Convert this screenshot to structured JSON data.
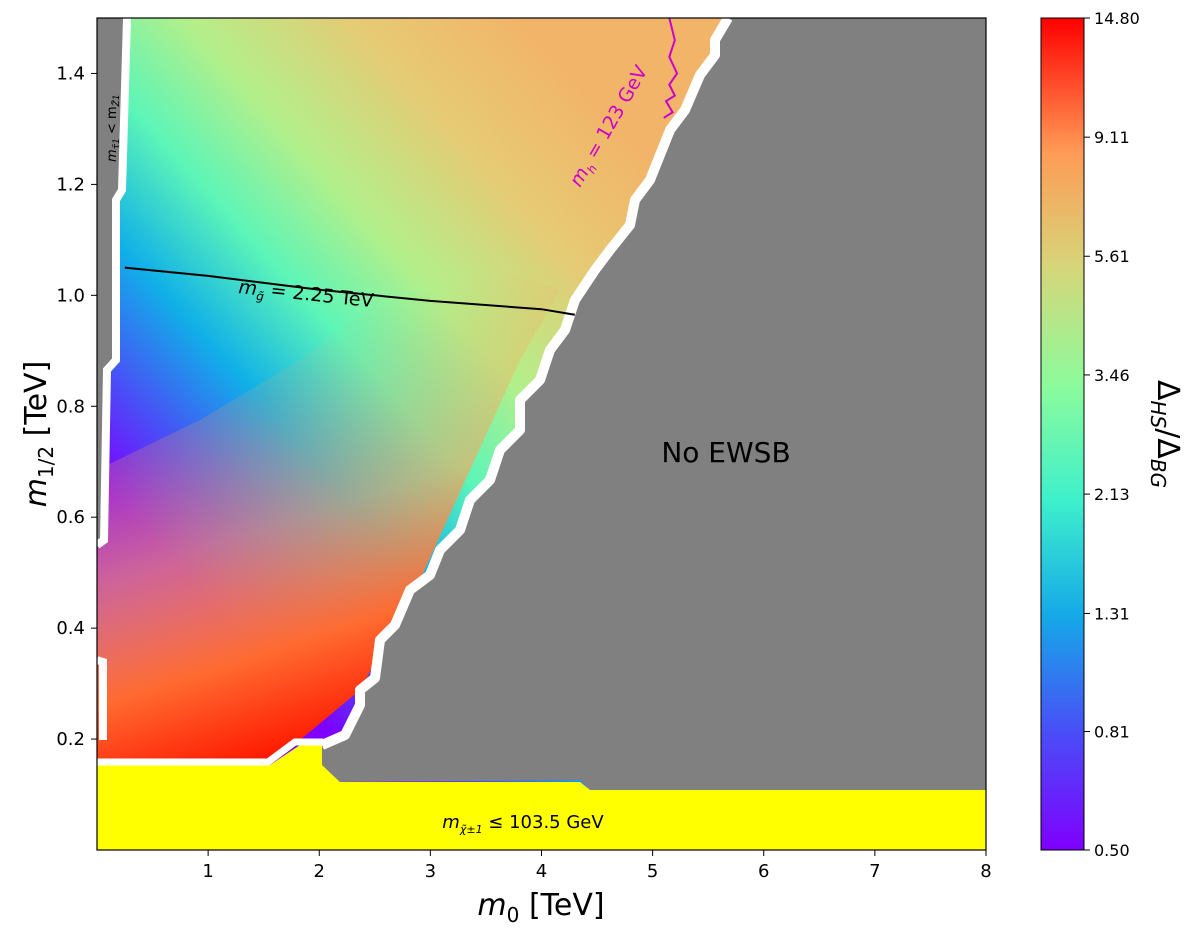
{
  "chart_data": {
    "type": "heatmap",
    "xlabel_var": "m",
    "xlabel_sub": "0",
    "xlabel_unit": "[TeV]",
    "ylabel_var": "m",
    "ylabel_sub": "1/2",
    "ylabel_unit": "[TeV]",
    "xlim": [
      0,
      8
    ],
    "ylim": [
      0,
      1.5
    ],
    "x_ticks": [
      1,
      2,
      3,
      4,
      5,
      6,
      7,
      8
    ],
    "y_ticks": [
      0.2,
      0.4,
      0.6,
      0.8,
      1.0,
      1.2,
      1.4
    ],
    "colorbar": {
      "label": "ΔHS/ΔBG",
      "label_main": "Δ",
      "label_sub1": "HS",
      "label_sep": "/Δ",
      "label_sub2": "BG",
      "scale": "log",
      "min": 0.5,
      "max": 14.8,
      "ticks": [
        "0.50",
        "0.81",
        "1.31",
        "2.13",
        "3.46",
        "5.61",
        "9.11",
        "14.80"
      ],
      "colormap": "rainbow"
    },
    "regions": [
      {
        "name": "No EWSB",
        "label": "No EWSB",
        "color": "#808080"
      },
      {
        "name": "chargino-excluded",
        "label": "m_χ̃1± ≤ 103.5 GeV",
        "label_pre": "m",
        "label_sub": "χ̃±1",
        "label_post": " ≤ 103.5 GeV",
        "color": "#ffff00"
      },
      {
        "name": "stau-lsp",
        "label": "m_τ̃1 < m_Z̃1",
        "label_pre": "m",
        "label_sub1": "τ̃1",
        "label_mid": " < m",
        "label_sub2": "Z̃1",
        "color": "#808080"
      }
    ],
    "contours": [
      {
        "name": "gluino-mass",
        "label": "m_g̃ = 2.25 TeV",
        "label_pre": "m",
        "label_sub": "g̃",
        "label_post": " = 2.25 TeV",
        "color": "#000000",
        "x": [
          0.25,
          1.0,
          2.0,
          3.0,
          4.0,
          4.3
        ],
        "y": [
          1.05,
          1.035,
          1.01,
          0.99,
          0.975,
          0.965
        ]
      },
      {
        "name": "higgs-mass",
        "label": "m_h = 123 GeV",
        "label_pre": "m",
        "label_sub": "h",
        "label_post": " = 123 GeV",
        "color": "#cc00cc",
        "x": [
          5.15,
          5.2,
          5.15,
          5.22,
          5.15,
          5.2,
          5.12,
          5.18,
          5.1
        ],
        "y": [
          1.5,
          1.46,
          1.43,
          1.4,
          1.38,
          1.36,
          1.35,
          1.33,
          1.32
        ]
      }
    ]
  }
}
